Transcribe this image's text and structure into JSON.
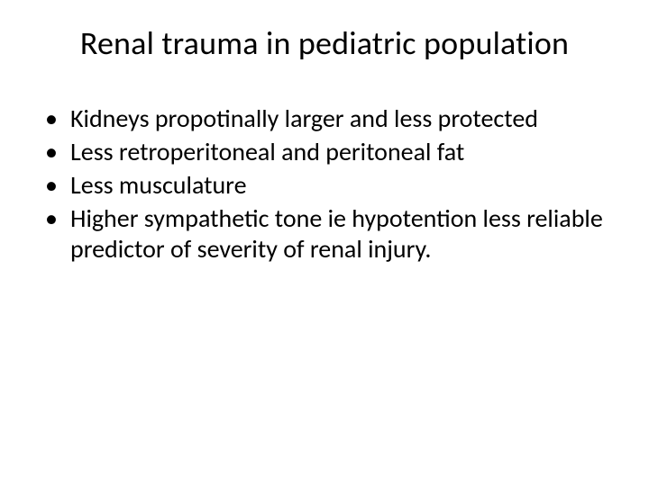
{
  "slide": {
    "title": "Renal trauma in pediatric population",
    "title_fontsize": 36,
    "body_fontsize": 28,
    "background_color": "#ffffff",
    "text_color": "#000000",
    "bullets": [
      "Kidneys propotinally larger and less protected",
      "Less retroperitoneal and peritoneal fat",
      "Less musculature",
      "Higher sympathetic tone ie hypotention less reliable predictor of severity of renal injury."
    ]
  }
}
